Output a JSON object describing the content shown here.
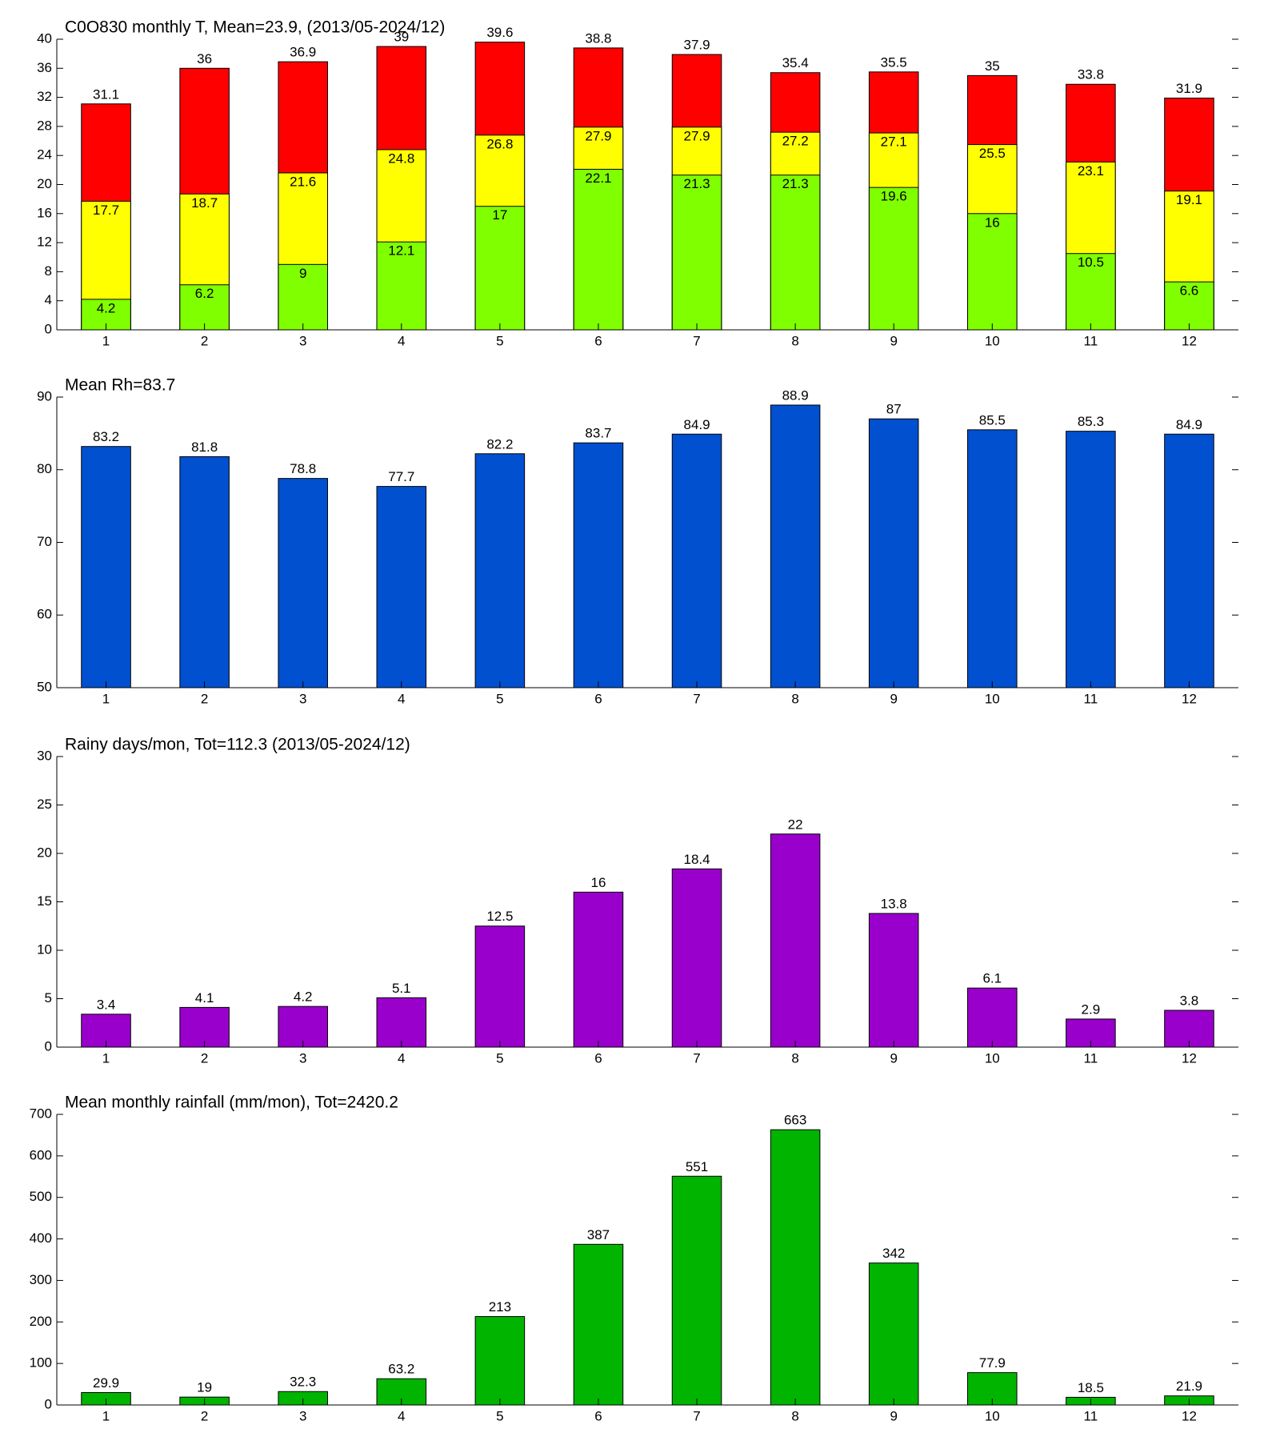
{
  "chart_data": [
    {
      "type": "bar",
      "title": "C0O830 monthly T, Mean=23.9, (2013/05-2024/12)",
      "categories": [
        "1",
        "2",
        "3",
        "4",
        "5",
        "6",
        "7",
        "8",
        "9",
        "10",
        "11",
        "12"
      ],
      "series": [
        {
          "color": "#ff0000",
          "values": [
            31.1,
            36,
            36.9,
            39,
            39.6,
            38.8,
            37.9,
            35.4,
            35.5,
            35,
            33.8,
            31.9
          ]
        },
        {
          "color": "#ffff00",
          "values": [
            17.7,
            18.7,
            21.6,
            24.8,
            26.8,
            27.9,
            27.9,
            27.2,
            27.1,
            25.5,
            23.1,
            19.1
          ]
        },
        {
          "color": "#80ff00",
          "values": [
            4.2,
            6.2,
            9,
            12.1,
            17,
            22.1,
            21.3,
            21.3,
            19.6,
            16,
            10.5,
            6.6
          ]
        }
      ],
      "ylim": [
        0,
        40
      ],
      "yticks": [
        0,
        4,
        8,
        12,
        16,
        20,
        24,
        28,
        32,
        36,
        40
      ]
    },
    {
      "type": "bar",
      "title": "Mean Rh=83.7",
      "categories": [
        "1",
        "2",
        "3",
        "4",
        "5",
        "6",
        "7",
        "8",
        "9",
        "10",
        "11",
        "12"
      ],
      "series": [
        {
          "color": "#0050d0",
          "values": [
            83.2,
            81.8,
            78.8,
            77.7,
            82.2,
            83.7,
            84.9,
            88.9,
            87,
            85.5,
            85.3,
            84.9
          ]
        }
      ],
      "ylim": [
        50,
        90
      ],
      "yticks": [
        50,
        60,
        70,
        80,
        90
      ]
    },
    {
      "type": "bar",
      "title": "Rainy days/mon, Tot=112.3 (2013/05-2024/12)",
      "categories": [
        "1",
        "2",
        "3",
        "4",
        "5",
        "6",
        "7",
        "8",
        "9",
        "10",
        "11",
        "12"
      ],
      "series": [
        {
          "color": "#9900cc",
          "values": [
            3.4,
            4.1,
            4.2,
            5.1,
            12.5,
            16,
            18.4,
            22,
            13.8,
            6.1,
            2.9,
            3.8
          ]
        }
      ],
      "ylim": [
        0,
        30
      ],
      "yticks": [
        0,
        5,
        10,
        15,
        20,
        25,
        30
      ]
    },
    {
      "type": "bar",
      "title": "Mean monthly rainfall (mm/mon), Tot=2420.2",
      "categories": [
        "1",
        "2",
        "3",
        "4",
        "5",
        "6",
        "7",
        "8",
        "9",
        "10",
        "11",
        "12"
      ],
      "series": [
        {
          "color": "#00b400",
          "values": [
            29.9,
            19,
            32.3,
            63.2,
            213,
            387,
            551,
            663,
            342,
            77.9,
            18.5,
            21.9
          ]
        }
      ],
      "ylim": [
        0,
        700
      ],
      "yticks": [
        0,
        100,
        200,
        300,
        400,
        500,
        600,
        700
      ]
    }
  ]
}
